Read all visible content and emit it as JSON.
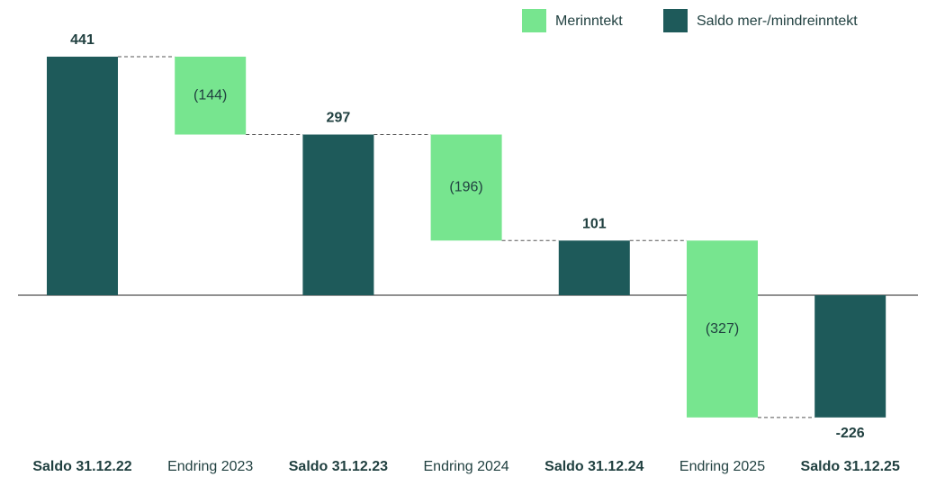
{
  "chart_data": {
    "type": "waterfall",
    "categories": [
      "Saldo 31.12.22",
      "Endring 2023",
      "Saldo 31.12.23",
      "Endring 2024",
      "Saldo 31.12.24",
      "Endring 2025",
      "Saldo 31.12.25"
    ],
    "series": [
      {
        "name": "Merinntekt",
        "color": "#77e58f",
        "values": [
          null,
          -144,
          null,
          -196,
          null,
          -327,
          null
        ],
        "value_labels": [
          null,
          "(144)",
          null,
          "(196)",
          null,
          "(327)",
          null
        ]
      },
      {
        "name": "Saldo mer-/mindreinntekt",
        "color": "#1e5a5a",
        "values": [
          441,
          null,
          297,
          null,
          101,
          null,
          -226
        ]
      }
    ]
  }
}
